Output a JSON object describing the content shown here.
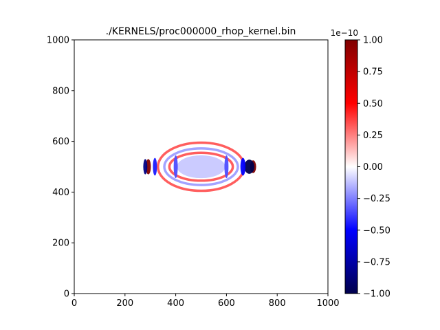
{
  "chart_data": {
    "type": "heatmap",
    "title": "./KERNELS/proc000000_rhop_kernel.bin",
    "xlim": [
      0,
      1000
    ],
    "ylim": [
      0,
      1000
    ],
    "x_ticks": [
      "0",
      "200",
      "400",
      "600",
      "800",
      "1000"
    ],
    "y_ticks": [
      "0",
      "200",
      "400",
      "600",
      "800",
      "1000"
    ],
    "colormap": "seismic",
    "colorbar": {
      "range": [
        -1.0,
        1.0
      ],
      "offset_label": "1e−10",
      "ticks": [
        "−1.00",
        "−0.75",
        "−0.50",
        "−0.25",
        "0.00",
        "0.25",
        "0.50",
        "0.75",
        "1.00"
      ],
      "tick_values": [
        -1.0,
        -0.75,
        -0.5,
        -0.25,
        0.0,
        0.25,
        0.5,
        0.75,
        1.0
      ],
      "colors": {
        "min": "#00004c",
        "mid": "#ffffff",
        "max": "#800000"
      }
    },
    "field_features": [
      {
        "shape": "ellipse-ring",
        "cx": 500,
        "cy": 500,
        "rx": 170,
        "ry": 95,
        "sign": "positive",
        "amplitude": 0.35
      },
      {
        "shape": "ellipse-ring",
        "cx": 500,
        "cy": 500,
        "rx": 145,
        "ry": 72,
        "sign": "negative",
        "amplitude": 0.2
      },
      {
        "shape": "ellipse-ring",
        "cx": 500,
        "cy": 500,
        "rx": 125,
        "ry": 55,
        "sign": "positive",
        "amplitude": 0.35
      },
      {
        "shape": "ellipse-fill",
        "cx": 500,
        "cy": 500,
        "rx": 95,
        "ry": 45,
        "sign": "negative",
        "amplitude": 0.12
      },
      {
        "shape": "lobe",
        "cx": 292,
        "cy": 500,
        "rx": 10,
        "ry": 30,
        "sign": "positive",
        "amplitude": 1.0
      },
      {
        "shape": "lobe",
        "cx": 280,
        "cy": 500,
        "rx": 8,
        "ry": 30,
        "sign": "negative",
        "amplitude": 0.85
      },
      {
        "shape": "lobe",
        "cx": 705,
        "cy": 500,
        "rx": 12,
        "ry": 25,
        "sign": "positive",
        "amplitude": 1.0
      },
      {
        "shape": "lobe",
        "cx": 690,
        "cy": 500,
        "rx": 20,
        "ry": 28,
        "sign": "negative",
        "amplitude": 1.0
      },
      {
        "shape": "lobe",
        "cx": 400,
        "cy": 500,
        "rx": 8,
        "ry": 45,
        "sign": "negative",
        "amplitude": 0.35
      },
      {
        "shape": "lobe",
        "cx": 600,
        "cy": 500,
        "rx": 8,
        "ry": 45,
        "sign": "negative",
        "amplitude": 0.35
      },
      {
        "shape": "lobe",
        "cx": 318,
        "cy": 500,
        "rx": 8,
        "ry": 35,
        "sign": "negative",
        "amplitude": 0.45
      },
      {
        "shape": "lobe",
        "cx": 665,
        "cy": 500,
        "rx": 10,
        "ry": 35,
        "sign": "negative",
        "amplitude": 0.5
      }
    ]
  }
}
